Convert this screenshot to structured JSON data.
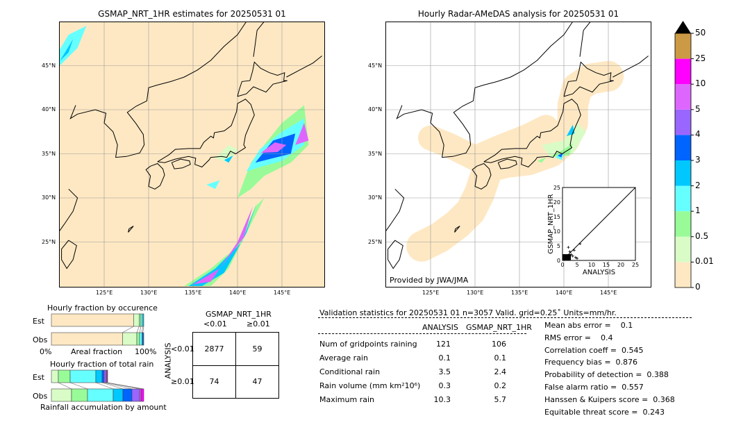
{
  "left_map": {
    "title": "GSMAP_NRT_1HR estimates for 20250531 01"
  },
  "right_map": {
    "title": "Hourly Radar-AMeDAS analysis for 20250531 01",
    "credit": "Provided by JWA/JMA"
  },
  "lon_ticks": [
    "125°E",
    "130°E",
    "135°E",
    "140°E",
    "145°E"
  ],
  "lat_ticks": [
    "45°N",
    "40°N",
    "35°N",
    "30°N",
    "25°N"
  ],
  "colorbar": {
    "labels": [
      "0",
      "0.01",
      "0.5",
      "1",
      "2",
      "3",
      "4",
      "5",
      "10",
      "25",
      "50"
    ],
    "colors": [
      "#fee8c3",
      "#d9fcc6",
      "#98fb98",
      "#66ffff",
      "#00c8ff",
      "#0064ff",
      "#9966ff",
      "#dd66ff",
      "#ff00ff",
      "#cc9944"
    ],
    "extend_color": "#000000"
  },
  "scatter": {
    "xlabel": "ANALYSIS",
    "ylabel": "GSMAP_NRT_1HR",
    "ticks": [
      "0",
      "5",
      "10",
      "15",
      "20",
      "25"
    ]
  },
  "chart_data": [
    {
      "type": "bar",
      "title": "Hourly fraction by occurence",
      "xlabel": "Areal fraction",
      "x_ticks": [
        "0%",
        "100%"
      ],
      "categories": [
        "Est",
        "Obs"
      ],
      "stacked_fractions": {
        "Est": [
          0.89,
          0.06,
          0.02,
          0.02,
          0.01
        ],
        "Obs": [
          0.77,
          0.155,
          0.03,
          0.025,
          0.01,
          0.01
        ]
      }
    },
    {
      "type": "bar",
      "title": "Hourly fraction of total rain",
      "xlabel": "Rainfall accumulation by amount",
      "categories": [
        "Est",
        "Obs"
      ],
      "stacked_fractions": {
        "Est": [
          0.075,
          0.128,
          0.278,
          0.068,
          0.022,
          0.023,
          0.008,
          0.007
        ],
        "Obs": [
          0.218,
          0.173,
          0.278,
          0.105,
          0.098,
          0.083,
          0.015,
          0.03
        ]
      }
    }
  ],
  "contingency": {
    "title": "GSMAP_NRT_1HR",
    "col_labels": [
      "<0.01",
      "≥0.01"
    ],
    "row_title": "ANALYSIS",
    "row_labels": [
      "<0.01",
      "≥0.01"
    ],
    "cells": [
      [
        "2877",
        "59"
      ],
      [
        "74",
        "47"
      ]
    ]
  },
  "stats": {
    "header": "Validation statistics for 20250531 01  n=3057 Valid. grid=0.25˚ Units=mm/hr.",
    "col_analysis": "ANALYSIS",
    "col_gsmap": "GSMAP_NRT_1HR",
    "rows": [
      {
        "label": "Num of gridpoints raining",
        "a": "121",
        "g": "106"
      },
      {
        "label": "Average rain",
        "a": "0.1",
        "g": "0.1"
      },
      {
        "label": "Conditional rain",
        "a": "3.5",
        "g": "2.4"
      },
      {
        "label": "Rain volume (mm km²10⁶)",
        "a": "0.3",
        "g": "0.2"
      },
      {
        "label": "Maximum rain",
        "a": "10.3",
        "g": "5.7"
      }
    ],
    "scores": [
      "Mean abs error =    0.1",
      "RMS error =    0.4",
      "Correlation coeff =  0.545",
      "Frequency bias =  0.876",
      "Probability of detection =  0.388",
      "False alarm ratio =  0.557",
      "Hanssen & Kuipers score =  0.368",
      "Equitable threat score =  0.243"
    ]
  }
}
